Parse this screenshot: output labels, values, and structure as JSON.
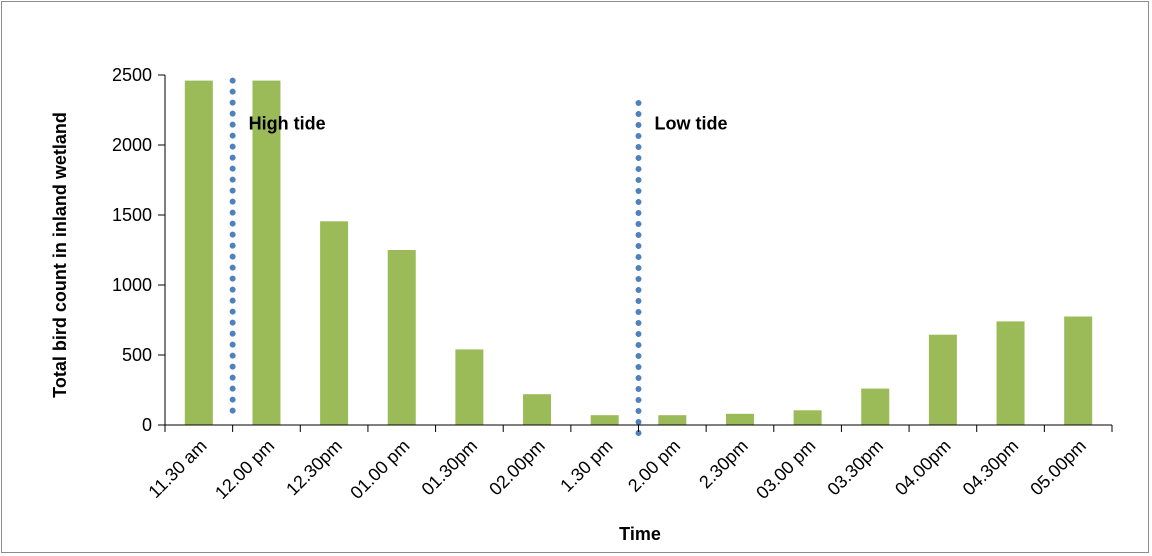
{
  "chart_data": {
    "type": "bar",
    "title": "",
    "xlabel": "Time",
    "ylabel": "Total bird count in inland wetland",
    "categories": [
      "11.30 am",
      "12.00 pm",
      "12.30pm",
      "01.00 pm",
      "01.30pm",
      "02.00pm",
      "1.30 pm",
      "2.00 pm",
      "2.30pm",
      "03.00 pm",
      "03.30pm",
      "04.00pm",
      "04.30pm",
      "05.00pm"
    ],
    "values": [
      2460,
      2460,
      1455,
      1250,
      540,
      220,
      70,
      70,
      80,
      105,
      260,
      645,
      740,
      775
    ],
    "ylim": [
      0,
      2500
    ],
    "yticks": [
      0,
      500,
      1000,
      1500,
      2000,
      2500
    ],
    "grid": false,
    "legend": "none",
    "colors": {
      "bar": "#9bbb59",
      "marker_line": "#4f81bd",
      "axis": "#000000"
    },
    "annotations": [
      {
        "text": "High tide",
        "after_category_index": 0,
        "y_top": 2300
      },
      {
        "text": "Low  tide",
        "after_category_index": 6,
        "y_top": 2300
      }
    ]
  }
}
